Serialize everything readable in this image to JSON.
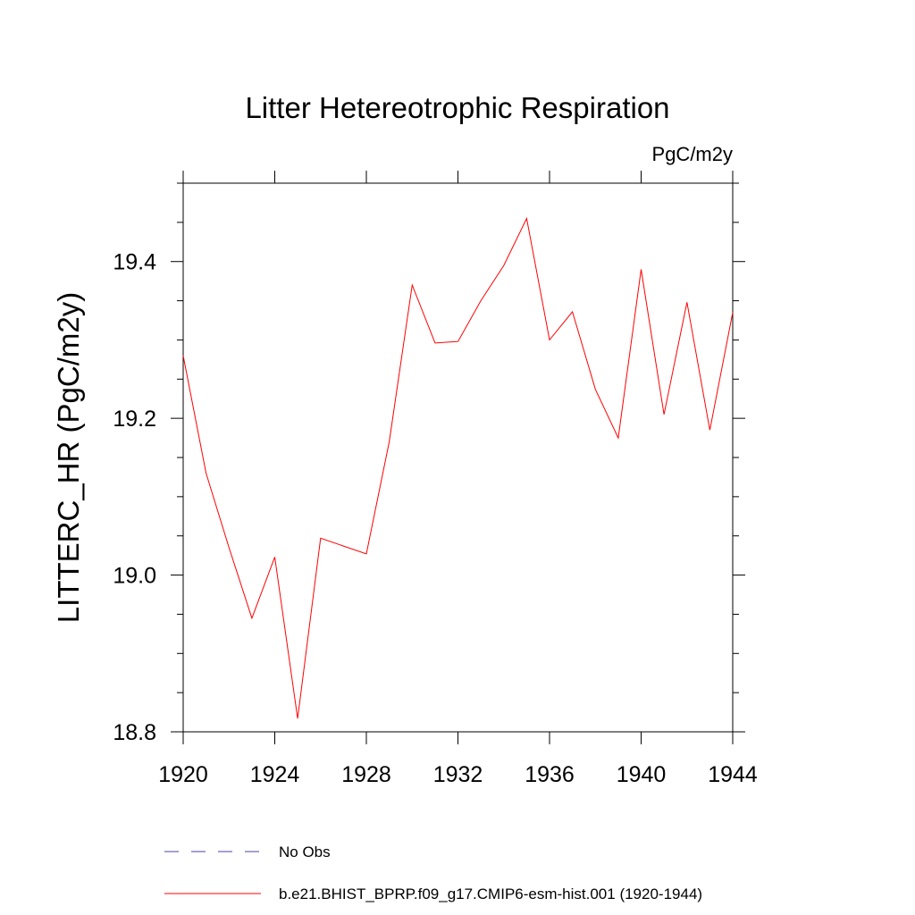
{
  "chart_data": {
    "type": "line",
    "title": "Litter Hetereotrophic Respiration",
    "units": "PgC/m2y",
    "xlabel": "",
    "ylabel": "LITTERC_HR  (PgC/m2y)",
    "xlim": [
      1920,
      1944
    ],
    "ylim": [
      18.8,
      19.5
    ],
    "xticks": [
      1920,
      1924,
      1928,
      1932,
      1936,
      1940,
      1944
    ],
    "xtick_labels": [
      "1920",
      "1924",
      "1928",
      "1932",
      "1936",
      "1940",
      "1944"
    ],
    "yticks": [
      18.8,
      19.0,
      19.2,
      19.4
    ],
    "ytick_labels": [
      "18.8",
      "19.0",
      "19.2",
      "19.4"
    ],
    "series": [
      {
        "name": "b.e21.BHIST_BPRP.f09_g17.CMIP6-esm-hist.001 (1920-1944)",
        "color": "#ff0000",
        "style": "solid",
        "x": [
          1920,
          1921,
          1922,
          1923,
          1924,
          1925,
          1926,
          1927,
          1928,
          1929,
          1930,
          1931,
          1932,
          1933,
          1934,
          1935,
          1936,
          1937,
          1938,
          1939,
          1940,
          1941,
          1942,
          1943,
          1944
        ],
        "y": [
          19.28,
          19.13,
          19.035,
          18.945,
          19.023,
          18.817,
          19.047,
          19.037,
          19.027,
          19.17,
          19.37,
          19.296,
          19.298,
          19.35,
          19.395,
          19.455,
          19.3,
          19.336,
          19.237,
          19.175,
          19.39,
          19.205,
          19.348,
          19.185,
          19.335
        ]
      }
    ],
    "legend": [
      {
        "label": "No Obs",
        "color": "#4b3fa8",
        "style": "dashed"
      },
      {
        "label": "b.e21.BHIST_BPRP.f09_g17.CMIP6-esm-hist.001 (1920-1944)",
        "color": "#ff0000",
        "style": "solid"
      }
    ],
    "legend_position": "bottom",
    "grid": false
  }
}
